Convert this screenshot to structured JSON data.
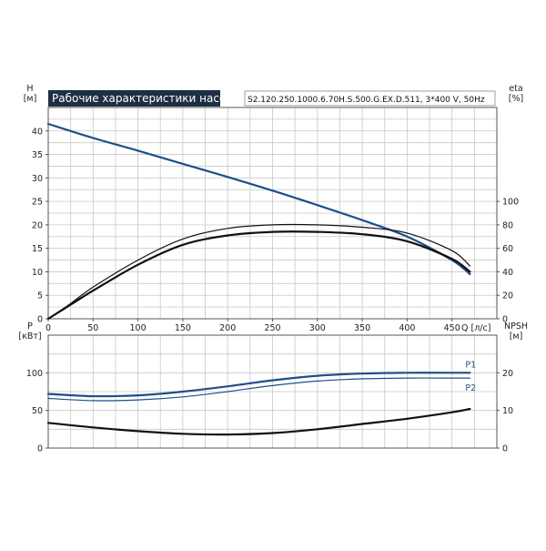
{
  "title": "Рабочие характеристики насоса",
  "model": "S2.120.250.1000.6.70H.S.500.G.EX.D.511, 3*400 V, 50Hz",
  "colors": {
    "blue": "#1f4e8c",
    "black": "#111111",
    "title_bg": "#1e2f44"
  },
  "chart_data": [
    {
      "type": "line",
      "x_label": "Q [л/с]",
      "x_ticks": [
        "0",
        "50",
        "100",
        "150",
        "200",
        "250",
        "300",
        "350",
        "400",
        "450"
      ],
      "xlim": [
        0,
        500
      ],
      "left_axis": {
        "label_top": "H",
        "label_unit": "[м]",
        "ylim": [
          0,
          45
        ],
        "ticks": [
          "0",
          "5",
          "10",
          "15",
          "20",
          "25",
          "30",
          "35",
          "40"
        ]
      },
      "right_axis": {
        "label_top": "eta",
        "label_unit": "[%]",
        "ylim": [
          0,
          180
        ],
        "ticks": [
          "0",
          "20",
          "40",
          "60",
          "80",
          "100"
        ]
      },
      "grid": true,
      "series": [
        {
          "axis": "left",
          "color": "#1f4e8c",
          "width": 2.2,
          "x": [
            0,
            50,
            100,
            150,
            200,
            250,
            300,
            350,
            400,
            450,
            470
          ],
          "y": [
            41.5,
            38.5,
            35.8,
            33.0,
            30.2,
            27.3,
            24.2,
            21.0,
            17.5,
            12.5,
            9.5
          ]
        },
        {
          "axis": "right",
          "color": "#111111",
          "width": 1.2,
          "x": [
            0,
            25,
            50,
            100,
            150,
            200,
            250,
            300,
            350,
            400,
            450,
            470
          ],
          "y": [
            0,
            13,
            27,
            50,
            68,
            77,
            80,
            80,
            78,
            73,
            58,
            45
          ]
        },
        {
          "axis": "right",
          "color": "#111111",
          "width": 2.2,
          "x": [
            0,
            25,
            50,
            100,
            150,
            200,
            250,
            300,
            350,
            400,
            450,
            470
          ],
          "y": [
            0,
            12,
            24,
            46,
            63,
            71,
            74,
            74,
            72,
            66,
            51,
            40
          ]
        }
      ]
    },
    {
      "type": "line",
      "xlim": [
        0,
        500
      ],
      "left_axis": {
        "label_top": "P",
        "label_unit": "[кВт]",
        "ylim": [
          0,
          150
        ],
        "ticks": [
          "0",
          "50",
          "100"
        ]
      },
      "right_axis": {
        "label_top": "NPSH",
        "label_unit": "[м]",
        "ylim": [
          0,
          30
        ],
        "ticks": [
          "0",
          "10",
          "20"
        ]
      },
      "grid": true,
      "series": [
        {
          "name": "P1",
          "axis": "left",
          "color": "#1f4e8c",
          "width": 2.2,
          "x": [
            0,
            50,
            100,
            150,
            200,
            250,
            300,
            350,
            400,
            450,
            470
          ],
          "y": [
            72,
            69,
            70,
            75,
            82,
            90,
            96,
            99,
            100,
            100,
            100
          ]
        },
        {
          "name": "P2",
          "axis": "left",
          "color": "#1f4e8c",
          "width": 1.2,
          "x": [
            0,
            50,
            100,
            150,
            200,
            250,
            300,
            350,
            400,
            450,
            470
          ],
          "y": [
            66,
            63,
            64,
            68,
            75,
            83,
            89,
            92,
            93,
            93,
            93
          ]
        },
        {
          "axis": "right",
          "color": "#111111",
          "width": 2.2,
          "x": [
            0,
            50,
            100,
            150,
            200,
            250,
            300,
            350,
            400,
            450,
            470
          ],
          "y": [
            6.7,
            5.5,
            4.5,
            3.8,
            3.6,
            4.0,
            5.0,
            6.4,
            7.8,
            9.5,
            10.4
          ]
        }
      ]
    }
  ]
}
